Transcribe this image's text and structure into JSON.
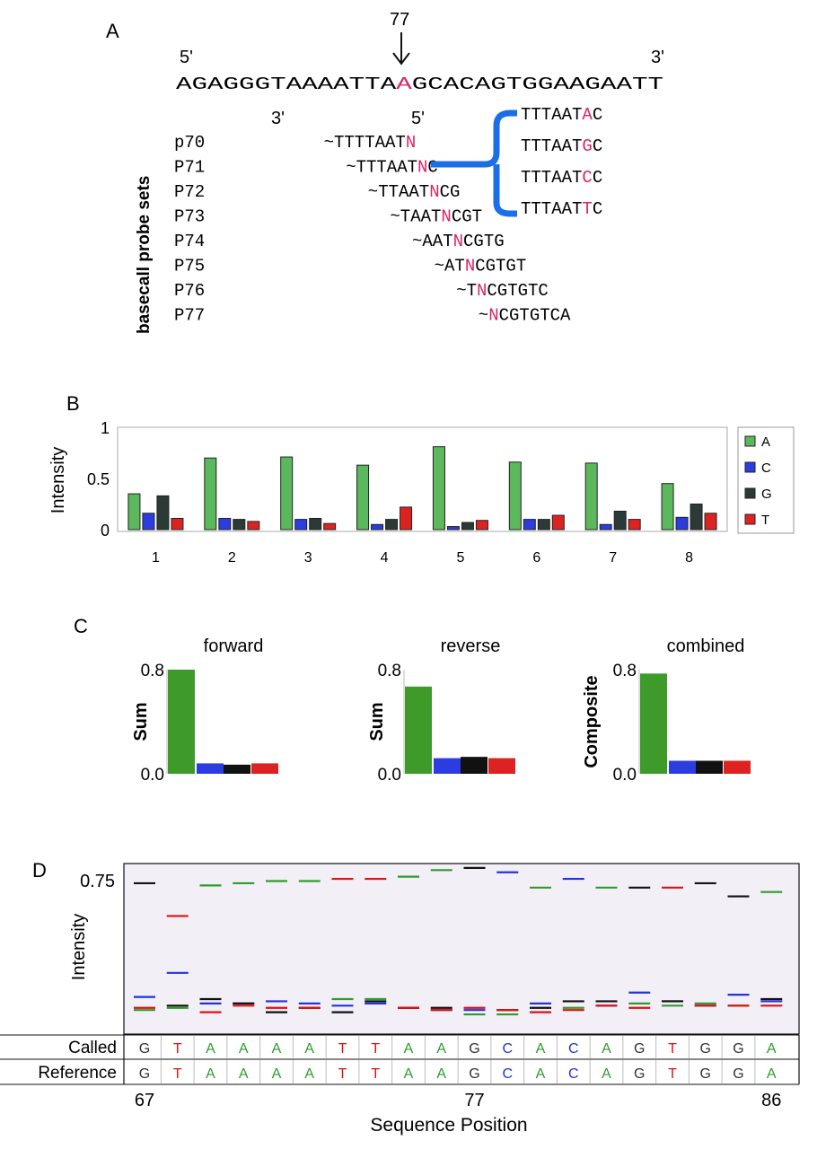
{
  "panels": {
    "a": {
      "label": "A",
      "marker": "77",
      "end5": "5'",
      "end3": "3'",
      "target": {
        "left": "AGAGGGTAAAATTA",
        "mid": "A",
        "right": "GCACAGTGGAAGAATT"
      },
      "probe_end3": "3'",
      "probe_end5": "5'",
      "side_label": "basecall probe sets",
      "probes": [
        {
          "name": "p70",
          "pre": "~TTTTAAT",
          "n": "N",
          "post": ""
        },
        {
          "name": "P71",
          "pre": "~TTTAAT",
          "n": "N",
          "post": "C"
        },
        {
          "name": "P72",
          "pre": "~TTAAT",
          "n": "N",
          "post": "CG"
        },
        {
          "name": "P73",
          "pre": "~TAAT",
          "n": "N",
          "post": "CGT"
        },
        {
          "name": "P74",
          "pre": "~AAT",
          "n": "N",
          "post": "CGTG"
        },
        {
          "name": "P75",
          "pre": "~AT",
          "n": "N",
          "post": "CGTGT"
        },
        {
          "name": "P76",
          "pre": "~T",
          "n": "N",
          "post": "CGTGTC"
        },
        {
          "name": "P77",
          "pre": "~",
          "n": "N",
          "post": "CGTGTCA"
        }
      ],
      "expansion": [
        {
          "pre": "TTTAAT",
          "n": "A",
          "post": "C"
        },
        {
          "pre": "TTTAAT",
          "n": "G",
          "post": "C"
        },
        {
          "pre": "TTTAAT",
          "n": "C",
          "post": "C"
        },
        {
          "pre": "TTTAAT",
          "n": "T",
          "post": "C"
        }
      ]
    },
    "b_label": "B",
    "c_label": "C",
    "d_label": "D"
  },
  "colors": {
    "A": "#5cb85c",
    "C": "#2b3de0",
    "G": "#2b3a37",
    "T": "#dd2222",
    "N": "#d8246a",
    "bracket": "#1a6ee8",
    "c_A": "#3e9b2a",
    "c_C": "#2b3de0",
    "c_G": "#111111",
    "c_T": "#dd2222",
    "d_A": "#2e9b2e",
    "d_C": "#2233dd",
    "d_G": "#111111",
    "d_T": "#dd1111"
  },
  "chart_data": [
    {
      "type": "bar",
      "panel": "B",
      "ylabel": "Intensity",
      "ylim": [
        0,
        1
      ],
      "yticks": [
        "0",
        "0.5",
        "1"
      ],
      "categories": [
        "1",
        "2",
        "3",
        "4",
        "5",
        "6",
        "7",
        "8"
      ],
      "legend": "right",
      "series": [
        {
          "name": "A",
          "values": [
            0.35,
            0.7,
            0.71,
            0.63,
            0.81,
            0.66,
            0.65,
            0.45
          ]
        },
        {
          "name": "C",
          "values": [
            0.16,
            0.11,
            0.1,
            0.05,
            0.03,
            0.1,
            0.05,
            0.12
          ]
        },
        {
          "name": "G",
          "values": [
            0.33,
            0.1,
            0.11,
            0.1,
            0.07,
            0.1,
            0.18,
            0.25
          ]
        },
        {
          "name": "T",
          "values": [
            0.11,
            0.08,
            0.06,
            0.22,
            0.09,
            0.14,
            0.1,
            0.16
          ]
        }
      ]
    },
    {
      "type": "bar",
      "panel": "C",
      "charts": [
        {
          "title": "forward",
          "ylabel": "Sum",
          "yticks": [
            "0.8",
            "0.0"
          ],
          "ylim": [
            0,
            0.8
          ],
          "values": [
            0.8,
            0.08,
            0.07,
            0.08
          ]
        },
        {
          "title": "reverse",
          "ylabel": "Sum",
          "yticks": [
            "0.8",
            "0.0"
          ],
          "ylim": [
            0,
            0.8
          ],
          "values": [
            0.67,
            0.12,
            0.13,
            0.12
          ]
        },
        {
          "title": "combined",
          "ylabel": "Composite",
          "yticks": [
            "0.8",
            "0.0"
          ],
          "ylim": [
            0,
            0.8
          ],
          "values": [
            0.77,
            0.1,
            0.1,
            0.1
          ]
        }
      ]
    },
    {
      "type": "scatter",
      "panel": "D",
      "ylabel": "Intensity",
      "ytick": "0.75",
      "ylim": [
        0,
        0.78
      ],
      "xlabel": "Sequence Position",
      "xticks": [
        "67",
        "77",
        "86"
      ],
      "x": [
        67,
        68,
        69,
        70,
        71,
        72,
        73,
        74,
        75,
        76,
        77,
        78,
        79,
        80,
        81,
        82,
        83,
        84,
        85,
        86
      ],
      "series": [
        {
          "name": "A",
          "values": [
            0.11,
            0.12,
            0.68,
            0.69,
            0.7,
            0.7,
            0.16,
            0.16,
            0.72,
            0.75,
            0.09,
            0.09,
            0.67,
            0.12,
            0.67,
            0.14,
            0.13,
            0.14,
            0.13,
            0.65
          ]
        },
        {
          "name": "C",
          "values": [
            0.17,
            0.28,
            0.14,
            0.14,
            0.15,
            0.14,
            0.13,
            0.14,
            0.12,
            0.11,
            0.11,
            0.74,
            0.14,
            0.71,
            0.13,
            0.19,
            0.15,
            0.13,
            0.18,
            0.15
          ]
        },
        {
          "name": "G",
          "values": [
            0.69,
            0.13,
            0.16,
            0.14,
            0.1,
            0.12,
            0.1,
            0.15,
            0.12,
            0.12,
            0.76,
            0.11,
            0.12,
            0.15,
            0.15,
            0.67,
            0.15,
            0.69,
            0.63,
            0.16
          ]
        },
        {
          "name": "T",
          "values": [
            0.12,
            0.54,
            0.1,
            0.13,
            0.12,
            0.12,
            0.71,
            0.71,
            0.12,
            0.11,
            0.12,
            0.11,
            0.1,
            0.11,
            0.13,
            0.12,
            0.67,
            0.13,
            0.13,
            0.13
          ]
        }
      ],
      "called": [
        "G",
        "T",
        "A",
        "A",
        "A",
        "A",
        "T",
        "T",
        "A",
        "A",
        "G",
        "C",
        "A",
        "C",
        "A",
        "G",
        "T",
        "G",
        "G",
        "A"
      ],
      "reference": [
        "G",
        "T",
        "A",
        "A",
        "A",
        "A",
        "T",
        "T",
        "A",
        "A",
        "G",
        "C",
        "A",
        "C",
        "A",
        "G",
        "T",
        "G",
        "G",
        "A"
      ],
      "row_labels": {
        "called": "Called",
        "reference": "Reference"
      }
    }
  ]
}
